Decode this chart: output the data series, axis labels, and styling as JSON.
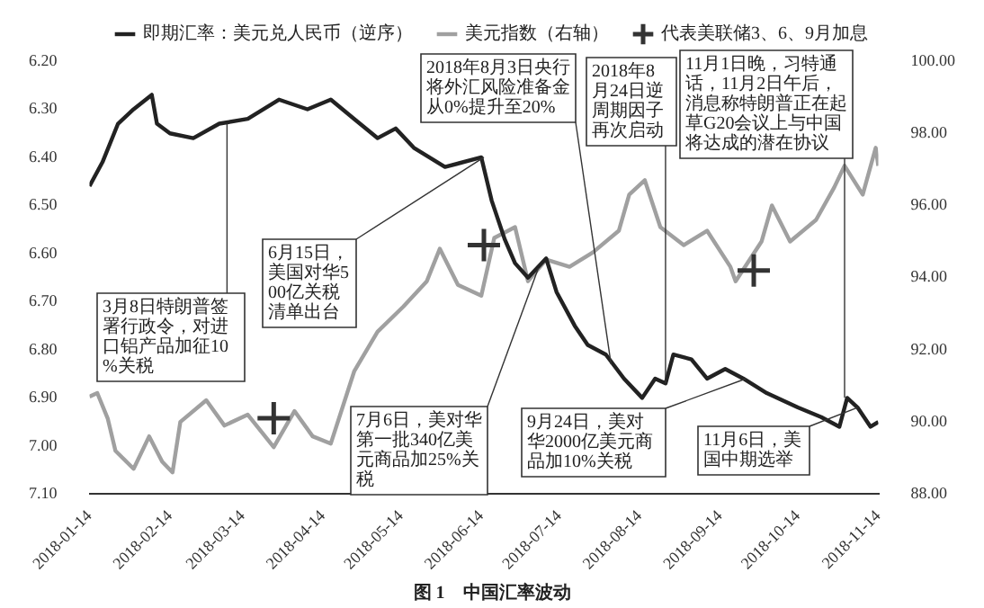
{
  "chart_data": {
    "type": "line",
    "title": "图 1　中国汇率波动",
    "legend": "top",
    "xlim": [
      "2018-01-14",
      "2018-11-14"
    ],
    "xticks": [
      "2018-01-14",
      "2018-02-14",
      "2018-03-14",
      "2018-04-14",
      "2018-05-14",
      "2018-06-14",
      "2018-07-14",
      "2018-08-14",
      "2018-09-14",
      "2018-10-14",
      "2018-11-14"
    ],
    "ylim": [
      7.1,
      6.2
    ],
    "yticks": [
      {
        "value": 6.2,
        "label": "6.20"
      },
      {
        "value": 6.3,
        "label": "6.30"
      },
      {
        "value": 6.4,
        "label": "6.40"
      },
      {
        "value": 6.5,
        "label": "6.50"
      },
      {
        "value": 6.6,
        "label": "6.60"
      },
      {
        "value": 6.7,
        "label": "6.70"
      },
      {
        "value": 6.8,
        "label": "6.80"
      },
      {
        "value": 6.9,
        "label": "6.90"
      },
      {
        "value": 7.0,
        "label": "7.00"
      },
      {
        "value": 7.1,
        "label": "7.10"
      }
    ],
    "y2lim": [
      88,
      100
    ],
    "y2ticks": [
      {
        "value": 88,
        "label": "88.00"
      },
      {
        "value": 90,
        "label": "90.00"
      },
      {
        "value": 92,
        "label": "92.00"
      },
      {
        "value": 94,
        "label": "94.00"
      },
      {
        "value": 96,
        "label": "96.00"
      },
      {
        "value": 98,
        "label": "98.00"
      },
      {
        "value": 100,
        "label": "100.00"
      }
    ],
    "series": [
      {
        "name": "即期汇率：美元兑人民币（逆序）",
        "color": "#222222",
        "x": [
          "2018-01-14",
          "2018-01-19",
          "2018-01-25",
          "2018-01-31",
          "2018-02-07",
          "2018-02-09",
          "2018-02-14",
          "2018-02-23",
          "2018-03-05",
          "2018-03-16",
          "2018-03-28",
          "2018-04-08",
          "2018-04-17",
          "2018-04-26",
          "2018-05-05",
          "2018-05-12",
          "2018-05-19",
          "2018-05-31",
          "2018-06-14",
          "2018-06-18",
          "2018-06-23",
          "2018-06-27",
          "2018-07-02",
          "2018-07-09",
          "2018-07-13",
          "2018-07-20",
          "2018-07-25",
          "2018-08-01",
          "2018-08-08",
          "2018-08-15",
          "2018-08-20",
          "2018-08-24",
          "2018-08-27",
          "2018-09-03",
          "2018-09-09",
          "2018-09-16",
          "2018-09-23",
          "2018-10-02",
          "2018-10-14",
          "2018-10-23",
          "2018-10-30",
          "2018-11-02",
          "2018-11-06",
          "2018-11-11",
          "2018-11-14"
        ],
        "values": [
          6.46,
          6.41,
          6.33,
          6.3,
          6.27,
          6.33,
          6.35,
          6.36,
          6.33,
          6.32,
          6.28,
          6.3,
          6.28,
          6.32,
          6.36,
          6.34,
          6.38,
          6.42,
          6.4,
          6.49,
          6.57,
          6.62,
          6.65,
          6.61,
          6.68,
          6.75,
          6.79,
          6.81,
          6.86,
          6.9,
          6.86,
          6.87,
          6.81,
          6.82,
          6.86,
          6.84,
          6.86,
          6.89,
          6.92,
          6.94,
          6.96,
          6.9,
          6.92,
          6.96,
          6.95
        ]
      },
      {
        "name": "美元指数（右轴）",
        "axis": "y2",
        "color": "#a0a0a0",
        "x": [
          "2018-01-14",
          "2018-01-17",
          "2018-01-21",
          "2018-01-24",
          "2018-01-31",
          "2018-02-06",
          "2018-02-11",
          "2018-02-15",
          "2018-02-18",
          "2018-02-28",
          "2018-03-07",
          "2018-03-16",
          "2018-03-26",
          "2018-04-03",
          "2018-04-10",
          "2018-04-17",
          "2018-04-26",
          "2018-05-05",
          "2018-05-15",
          "2018-05-24",
          "2018-05-29",
          "2018-06-05",
          "2018-06-14",
          "2018-06-19",
          "2018-06-27",
          "2018-07-02",
          "2018-07-09",
          "2018-07-18",
          "2018-07-27",
          "2018-08-06",
          "2018-08-10",
          "2018-08-16",
          "2018-08-22",
          "2018-08-31",
          "2018-09-09",
          "2018-09-18",
          "2018-09-20",
          "2018-09-30",
          "2018-10-04",
          "2018-10-11",
          "2018-10-21",
          "2018-10-28",
          "2018-11-01",
          "2018-11-08",
          "2018-11-13",
          "2018-11-14"
        ],
        "values": [
          90.7,
          90.8,
          90.1,
          89.2,
          88.7,
          89.6,
          88.9,
          88.6,
          90.0,
          90.6,
          89.9,
          90.2,
          89.3,
          90.3,
          89.6,
          89.4,
          91.4,
          92.5,
          93.2,
          93.9,
          94.8,
          93.8,
          93.5,
          95.1,
          95.4,
          93.9,
          94.5,
          94.3,
          94.7,
          95.3,
          96.3,
          96.7,
          95.4,
          94.9,
          95.3,
          94.3,
          93.9,
          95.0,
          96.0,
          95.0,
          95.6,
          96.5,
          97.1,
          96.3,
          97.6,
          97.1
        ]
      },
      {
        "name": "代表美联储3、6、9月加息",
        "type": "scatter",
        "axis": "y2",
        "marker": "cross",
        "color": "#333333",
        "x": [
          "2018-03-26",
          "2018-06-15",
          "2018-09-27"
        ],
        "values": [
          90.1,
          94.9,
          94.2
        ]
      }
    ],
    "annotations": [
      {
        "text": "3月8日特朗普签署行政令，对进口铝产品加征10%关税",
        "x": "2018-03-08",
        "y": 6.33
      },
      {
        "text": "6月15日，美国对华500亿关税清单出台",
        "x": "2018-06-15",
        "y": 6.4
      },
      {
        "text": "7月6日，美对华第一批340亿美元商品加25%关税",
        "x": "2018-07-06",
        "y": 6.63
      },
      {
        "text": "2018年8月3日央行将外汇风险准备金从0%提升至20%",
        "x": "2018-08-03",
        "y": 6.83
      },
      {
        "text": "2018年8月24日逆周期因子再次启动",
        "x": "2018-08-24",
        "y": 6.87
      },
      {
        "text": "9月24日，美对华2000亿美元商品加10%关税",
        "x": "2018-09-24",
        "y": 6.86
      },
      {
        "text": "11月1日晚，习特通话，11月2日午后，消息称特朗普正在起草G20会议上与中国将达成的潜在协议",
        "x": "2018-11-01",
        "y": 6.9
      },
      {
        "text": "11月6日，美国中期选举",
        "x": "2018-11-06",
        "y": 6.92
      }
    ]
  }
}
